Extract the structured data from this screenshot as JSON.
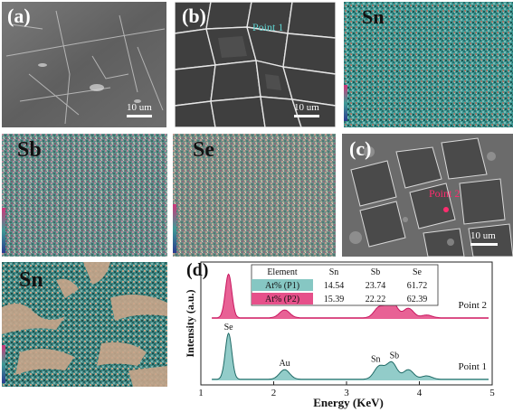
{
  "panels": {
    "a": {
      "label": "(a)",
      "scale": "10 um"
    },
    "b": {
      "label": "(b)",
      "scale": "10 um",
      "point": "Point 1"
    },
    "sn_top": {
      "label": "Sn"
    },
    "sb": {
      "label": "Sb"
    },
    "se": {
      "label": "Se"
    },
    "c": {
      "label": "(c)",
      "scale": "10 um",
      "point": "Point 2"
    },
    "sn_bottom": {
      "label": "Sn"
    },
    "d": {
      "label": "(d)"
    }
  },
  "colors": {
    "point1_fill": "#86c7c3",
    "point1_line": "#1f6a66",
    "point2_fill": "#e6508a",
    "point2_line": "#c8175f",
    "point_marker": "#ff2d6f",
    "map_teal": "#3f9a95",
    "map_sn_bg": "#c7a58a"
  },
  "chart_data": {
    "type": "line",
    "xlabel": "Energy (KeV)",
    "ylabel": "Intensity (a.u.)",
    "xlim": [
      1,
      5
    ],
    "x_ticks": [
      "1",
      "2",
      "3",
      "4",
      "5"
    ],
    "y_ticks_shown": false,
    "series": [
      {
        "name": "Point 2",
        "offset": 1.0,
        "peaks": [
          [
            1.38,
            0.78
          ],
          [
            2.15,
            0.14
          ],
          [
            3.45,
            0.19
          ],
          [
            3.62,
            0.31
          ],
          [
            3.85,
            0.17
          ],
          [
            4.1,
            0.05
          ]
        ]
      },
      {
        "name": "Point 1",
        "offset": 0.0,
        "peaks": [
          [
            1.38,
            0.82
          ],
          [
            2.15,
            0.17
          ],
          [
            3.45,
            0.23
          ],
          [
            3.62,
            0.3
          ],
          [
            3.85,
            0.17
          ],
          [
            4.1,
            0.06
          ]
        ]
      }
    ],
    "peak_labels": [
      {
        "text": "Se",
        "x": 1.38,
        "series": "Point 1"
      },
      {
        "text": "Au",
        "x": 2.15,
        "series": "Point 1"
      },
      {
        "text": "Sn",
        "x": 3.45,
        "series": "Point 1"
      },
      {
        "text": "Sb",
        "x": 3.62,
        "series": "Point 1"
      }
    ],
    "table": {
      "headers": [
        "Element",
        "Sn",
        "Sb",
        "Se"
      ],
      "rows": [
        [
          "At% (P1)",
          "14.54",
          "23.74",
          "61.72"
        ],
        [
          "At% (P2)",
          "15.39",
          "22.22",
          "62.39"
        ]
      ]
    }
  }
}
